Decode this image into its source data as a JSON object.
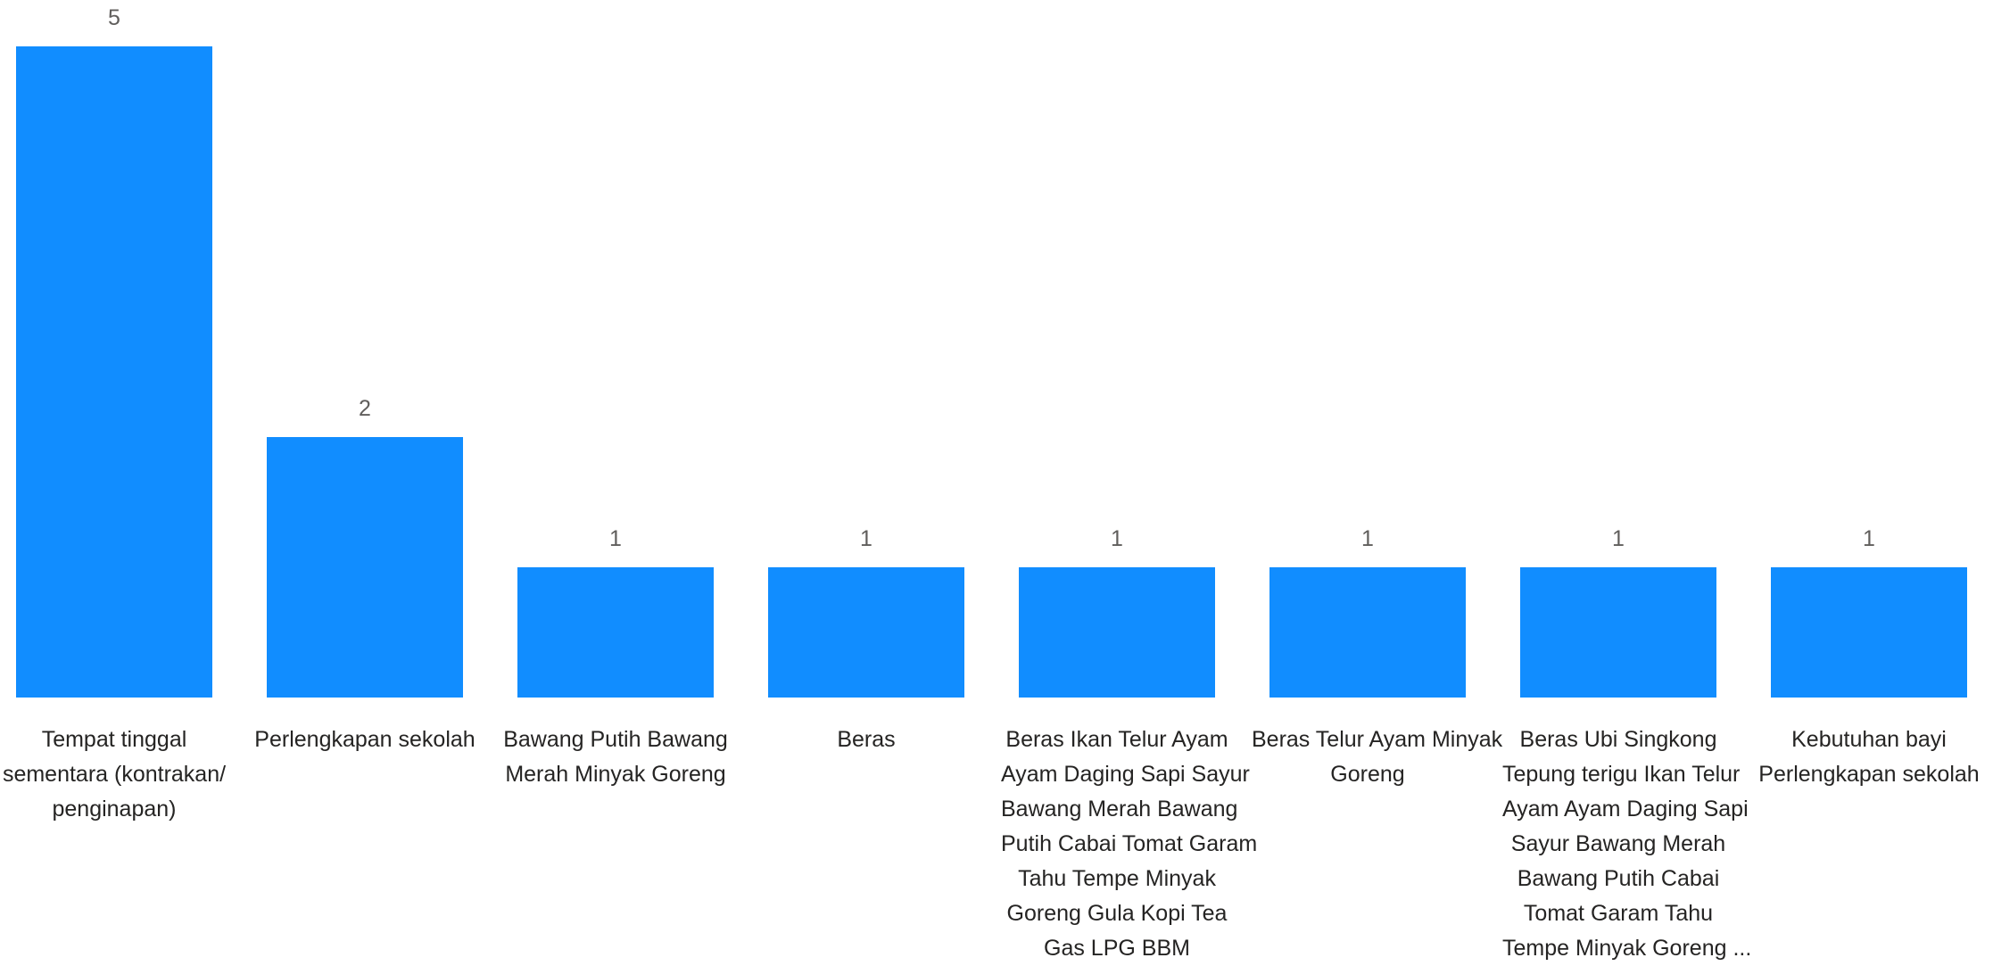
{
  "chart_data": {
    "type": "bar",
    "categories": [
      "Tempat tinggal sementara (kontrakan/ penginapan)",
      "Perlengkapan sekolah",
      "Bawang Putih Bawang Merah Minyak Goreng",
      "Beras",
      "Beras Ikan Telur Ayam Ayam Daging Sapi Sayur Bawang Merah Bawang Putih Cabai Tomat Garam Tahu Tempe Minyak Goreng Gula Kopi Tea Gas LPG BBM",
      "Beras Telur Ayam Minyak Goreng",
      "Beras Ubi Singkong Tepung terigu Ikan Telur Ayam Ayam Daging Sapi Sayur Bawang Merah Bawang Putih Cabai Tomat Garam Tahu Tempe Minyak Goreng ...",
      "Kebutuhan bayi Perlengkapan sekolah"
    ],
    "category_lines": [
      [
        "Tempat tinggal",
        "sementara (kontrakan/",
        "penginapan)"
      ],
      [
        "Perlengkapan sekolah"
      ],
      [
        "Bawang Putih Bawang",
        "Merah Minyak Goreng"
      ],
      [
        "Beras"
      ],
      [
        "Beras Ikan Telur Ayam",
        "Ayam Daging Sapi Sayur",
        "Bawang Merah Bawang",
        "Putih Cabai Tomat Garam",
        "Tahu Tempe Minyak",
        "Goreng Gula Kopi Tea",
        "Gas LPG BBM"
      ],
      [
        "Beras Telur Ayam Minyak",
        "Goreng"
      ],
      [
        "Beras Ubi Singkong",
        "Tepung terigu Ikan Telur",
        "Ayam Ayam Daging Sapi",
        "Sayur Bawang Merah",
        "Bawang Putih Cabai",
        "Tomat Garam Tahu",
        "Tempe Minyak Goreng ..."
      ],
      [
        "Kebutuhan bayi",
        "Perlengkapan sekolah"
      ]
    ],
    "values": [
      5,
      2,
      1,
      1,
      1,
      1,
      1,
      1
    ],
    "data_labels": [
      "5",
      "2",
      "1",
      "1",
      "1",
      "1",
      "1",
      "1"
    ],
    "ylim": [
      0,
      5
    ],
    "bar_color": "#118DFF",
    "value_label_color": "#605E5C",
    "category_label_color": "#252423",
    "grid": false,
    "legend": "none",
    "title": "",
    "xlabel": "",
    "ylabel": ""
  }
}
